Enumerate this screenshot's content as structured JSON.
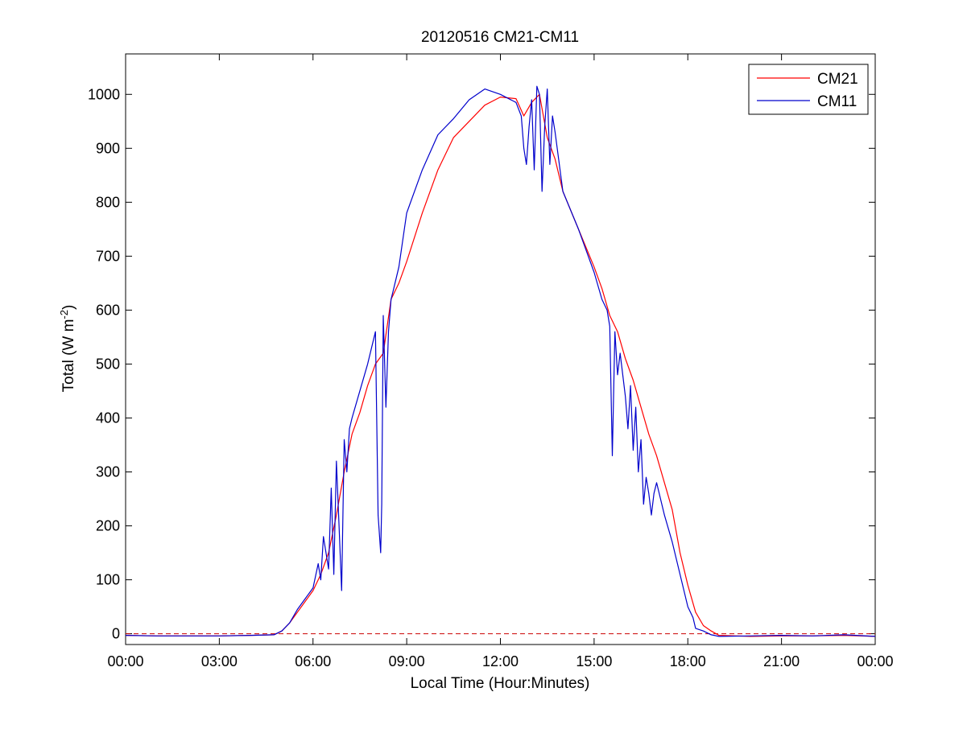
{
  "chart_data": {
    "type": "line",
    "title": "20120516 CM21-CM11",
    "xlabel": "Local Time (Hour:Minutes)",
    "ylabel": {
      "main": "Total (W m",
      "superscript": "-2",
      "suffix": ")"
    },
    "xlim": [
      "00:00",
      "24:00"
    ],
    "ylim": [
      -20,
      1075
    ],
    "x_ticks": [
      "00:00",
      "03:00",
      "06:00",
      "09:00",
      "12:00",
      "15:00",
      "18:00",
      "21:00",
      "00:00"
    ],
    "y_ticks": [
      0,
      100,
      200,
      300,
      400,
      500,
      600,
      700,
      800,
      900,
      1000
    ],
    "grid": false,
    "legend": {
      "position": "top-right",
      "entries": [
        "CM21",
        "CM11"
      ]
    },
    "reference_line": {
      "y": 0,
      "style": "dashed",
      "color": "#cc0000"
    },
    "series": [
      {
        "name": "CM21",
        "color": "#ff0000",
        "x": [
          "00:00",
          "01:00",
          "02:00",
          "03:00",
          "04:00",
          "04:45",
          "05:00",
          "05:15",
          "05:30",
          "05:45",
          "06:00",
          "06:15",
          "06:30",
          "06:45",
          "07:00",
          "07:15",
          "07:30",
          "07:45",
          "08:00",
          "08:15",
          "08:30",
          "08:45",
          "09:00",
          "09:30",
          "10:00",
          "10:30",
          "11:00",
          "11:30",
          "12:00",
          "12:30",
          "12:45",
          "13:00",
          "13:15",
          "13:30",
          "13:45",
          "14:00",
          "14:30",
          "15:00",
          "15:15",
          "15:30",
          "15:45",
          "16:00",
          "16:15",
          "16:30",
          "16:45",
          "17:00",
          "17:15",
          "17:30",
          "17:45",
          "18:00",
          "18:15",
          "18:30",
          "18:45",
          "19:00",
          "20:00",
          "21:00",
          "22:00",
          "23:00",
          "24:00"
        ],
        "y": [
          -3,
          -4,
          -4,
          -4,
          -3,
          -2,
          5,
          20,
          40,
          60,
          80,
          110,
          150,
          220,
          300,
          370,
          410,
          460,
          500,
          520,
          620,
          650,
          690,
          780,
          860,
          920,
          950,
          980,
          995,
          992,
          960,
          985,
          1000,
          920,
          880,
          820,
          750,
          680,
          640,
          590,
          560,
          510,
          470,
          420,
          370,
          330,
          280,
          230,
          150,
          90,
          40,
          15,
          5,
          -3,
          -5,
          -4,
          -4,
          -3,
          -5
        ]
      },
      {
        "name": "CM11",
        "color": "#0000cc",
        "x": [
          "00:00",
          "01:00",
          "02:00",
          "03:00",
          "04:00",
          "04:45",
          "05:00",
          "05:15",
          "05:30",
          "05:45",
          "06:00",
          "06:10",
          "06:15",
          "06:20",
          "06:30",
          "06:35",
          "06:40",
          "06:45",
          "06:50",
          "06:55",
          "07:00",
          "07:05",
          "07:10",
          "07:15",
          "07:30",
          "07:45",
          "08:00",
          "08:05",
          "08:10",
          "08:12",
          "08:15",
          "08:20",
          "08:25",
          "08:30",
          "08:35",
          "08:40",
          "08:45",
          "09:00",
          "09:30",
          "10:00",
          "10:30",
          "11:00",
          "11:30",
          "12:00",
          "12:30",
          "12:40",
          "12:45",
          "12:50",
          "12:55",
          "13:00",
          "13:05",
          "13:10",
          "13:15",
          "13:20",
          "13:25",
          "13:30",
          "13:35",
          "13:40",
          "13:45",
          "14:00",
          "14:30",
          "15:00",
          "15:15",
          "15:25",
          "15:30",
          "15:35",
          "15:40",
          "15:45",
          "15:50",
          "16:00",
          "16:05",
          "16:10",
          "16:15",
          "16:20",
          "16:25",
          "16:30",
          "16:35",
          "16:40",
          "16:45",
          "16:50",
          "16:55",
          "17:00",
          "17:15",
          "17:30",
          "17:45",
          "18:00",
          "18:10",
          "18:15",
          "18:30",
          "18:45",
          "19:00",
          "20:00",
          "21:00",
          "22:00",
          "23:00",
          "24:00"
        ],
        "y": [
          -3,
          -4,
          -4,
          -4,
          -3,
          -2,
          5,
          20,
          45,
          65,
          85,
          130,
          100,
          180,
          120,
          270,
          110,
          320,
          200,
          80,
          360,
          300,
          380,
          400,
          450,
          500,
          560,
          220,
          150,
          240,
          590,
          420,
          560,
          620,
          640,
          660,
          680,
          780,
          860,
          925,
          955,
          990,
          1010,
          1000,
          985,
          960,
          900,
          870,
          940,
          990,
          860,
          1015,
          1000,
          820,
          940,
          1010,
          870,
          960,
          930,
          820,
          750,
          670,
          620,
          600,
          570,
          330,
          560,
          480,
          520,
          440,
          380,
          460,
          340,
          420,
          300,
          360,
          240,
          290,
          260,
          220,
          260,
          280,
          220,
          170,
          110,
          50,
          30,
          10,
          5,
          -2,
          -5,
          -4,
          -3,
          -4,
          -2,
          -5
        ]
      }
    ]
  }
}
